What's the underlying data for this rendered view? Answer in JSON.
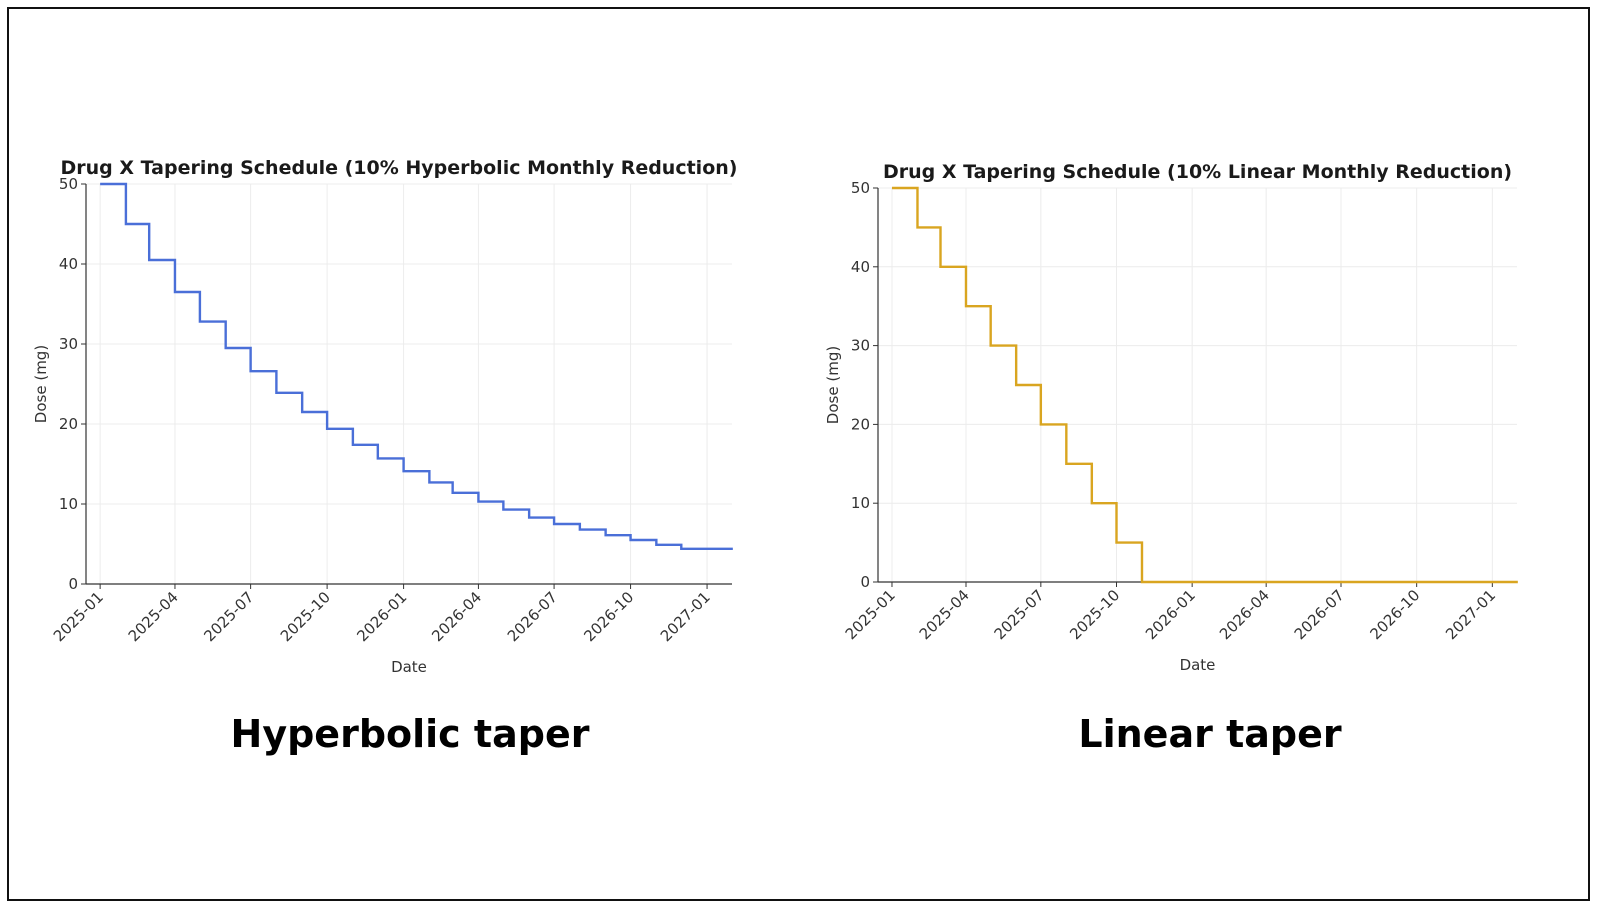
{
  "captions": {
    "left": "Hyperbolic taper",
    "right": "Linear taper"
  },
  "chart_data": [
    {
      "type": "line",
      "step": true,
      "title": "Drug X Tapering Schedule (10% Hyperbolic Monthly Reduction)",
      "xlabel": "Date",
      "ylabel": "Dose (mg)",
      "color": "#4a6fd8",
      "xlim": [
        "2024-12-15",
        "2027-01-31"
      ],
      "ylim": [
        0,
        50
      ],
      "yticks": [
        0,
        10,
        20,
        30,
        40,
        50
      ],
      "xticks": [
        "2025-01",
        "2025-04",
        "2025-07",
        "2025-10",
        "2026-01",
        "2026-04",
        "2026-07",
        "2026-10",
        "2027-01"
      ],
      "grid": true,
      "series": [
        {
          "x": [
            "2025-01-01",
            "2025-02-01",
            "2025-03-01",
            "2025-04-01",
            "2025-05-01",
            "2025-06-01",
            "2025-07-01",
            "2025-08-01",
            "2025-09-01",
            "2025-10-01",
            "2025-11-01",
            "2025-12-01",
            "2026-01-01",
            "2026-02-01",
            "2026-03-01",
            "2026-04-01",
            "2026-05-01",
            "2026-06-01",
            "2026-07-01",
            "2026-08-01",
            "2026-09-01",
            "2026-10-01",
            "2026-11-01",
            "2026-12-01",
            "2027-01-01",
            "2027-02-01"
          ],
          "values": [
            50,
            45,
            40.5,
            36.5,
            32.8,
            29.5,
            26.6,
            23.9,
            21.5,
            19.4,
            17.4,
            15.7,
            14.1,
            12.7,
            11.4,
            10.3,
            9.3,
            8.3,
            7.5,
            6.8,
            6.1,
            5.5,
            4.9,
            4.4,
            4.4,
            4.4
          ]
        }
      ]
    },
    {
      "type": "line",
      "step": true,
      "title": "Drug X Tapering Schedule (10% Linear Monthly Reduction)",
      "xlabel": "Date",
      "ylabel": "Dose (mg)",
      "color": "#d9a520",
      "xlim": [
        "2024-12-15",
        "2027-01-31"
      ],
      "ylim": [
        0,
        50
      ],
      "yticks": [
        0,
        10,
        20,
        30,
        40,
        50
      ],
      "xticks": [
        "2025-01",
        "2025-04",
        "2025-07",
        "2025-10",
        "2026-01",
        "2026-04",
        "2026-07",
        "2026-10",
        "2027-01"
      ],
      "grid": true,
      "series": [
        {
          "x": [
            "2025-01-01",
            "2025-02-01",
            "2025-03-01",
            "2025-04-01",
            "2025-05-01",
            "2025-06-01",
            "2025-07-01",
            "2025-08-01",
            "2025-09-01",
            "2025-10-01",
            "2025-11-01",
            "2025-12-01",
            "2026-01-01",
            "2026-02-01",
            "2026-03-01",
            "2026-04-01",
            "2026-05-01",
            "2026-06-01",
            "2026-07-01",
            "2026-08-01",
            "2026-09-01",
            "2026-10-01",
            "2026-11-01",
            "2026-12-01",
            "2027-01-01",
            "2027-02-01"
          ],
          "values": [
            50,
            45,
            40,
            35,
            30,
            25,
            20,
            15,
            10,
            5,
            0,
            0,
            0,
            0,
            0,
            0,
            0,
            0,
            0,
            0,
            0,
            0,
            0,
            0,
            0,
            0
          ]
        }
      ]
    }
  ]
}
